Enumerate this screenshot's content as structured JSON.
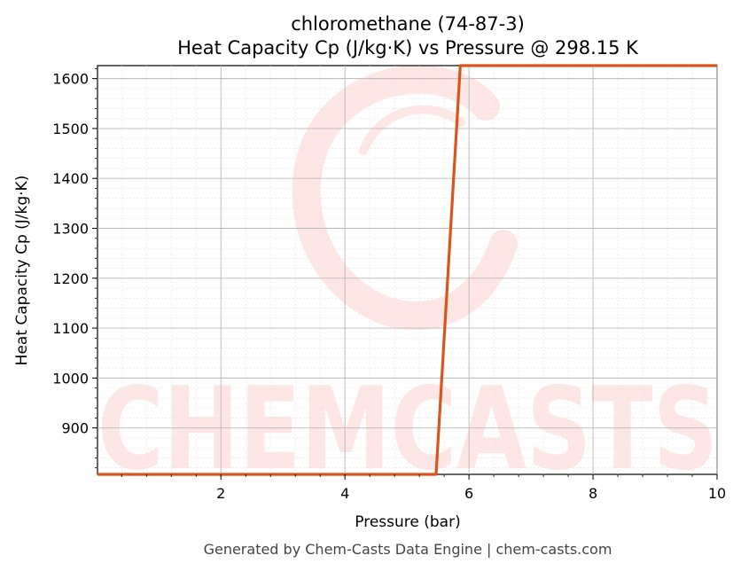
{
  "chart_data": {
    "type": "line",
    "title": "chloromethane (74-87-3)",
    "subtitle": "Heat Capacity Cp (J/kg·K) vs Pressure @ 298.15 K",
    "xlabel": "Pressure (bar)",
    "ylabel": "Heat Capacity Cp (J/kg·K)",
    "xlim": [
      0.01,
      10
    ],
    "ylim": [
      807,
      1626
    ],
    "x_ticks": [
      2,
      4,
      6,
      8,
      10
    ],
    "y_ticks": [
      900,
      1000,
      1100,
      1200,
      1300,
      1400,
      1500,
      1600
    ],
    "grid": true,
    "minor_grid": true,
    "series": [
      {
        "color": "#d9541e",
        "x": [
          0.01,
          5.47,
          5.86,
          10
        ],
        "y": [
          807,
          807,
          1626,
          1626
        ]
      }
    ]
  },
  "watermark": {
    "text": "CHEMCASTS",
    "color": "#fde6e3"
  },
  "footer": "Generated by Chem-Casts Data Engine | chem-casts.com"
}
